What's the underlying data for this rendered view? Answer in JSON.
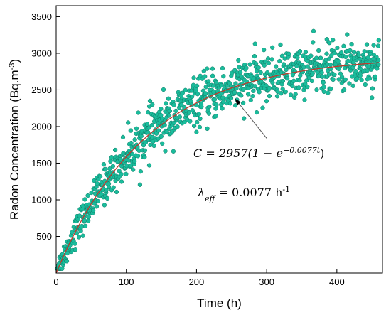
{
  "chart_data": {
    "type": "scatter",
    "title": "",
    "xlabel": "Time (h)",
    "ylabel_base": "Radon Concentration (Bq.m",
    "ylabel_sup": "-3",
    "ylabel_close": ")",
    "xlim": [
      0,
      465
    ],
    "ylim": [
      0,
      3650
    ],
    "x_ticks": [
      0,
      100,
      200,
      300,
      400
    ],
    "y_ticks": [
      500,
      1000,
      1500,
      2000,
      2500,
      3000,
      3500
    ],
    "grid": false,
    "legend": "none",
    "fit": {
      "C_inf": 2957,
      "lambda": 0.0077,
      "color": "#c0392b"
    },
    "scatter": {
      "color": "#1abc9c",
      "edge_color": "#117a65",
      "t_start": 1,
      "t_end": 460,
      "n_points": 900,
      "noise_amplitude": 220
    },
    "annotations": {
      "equation": {
        "lhs": "C = 2957(1 − e",
        "exponent": "−0.0077t",
        "rhs": ")"
      },
      "lambda": {
        "symbol": "λ",
        "subscript": "eff",
        "value": " = 0.0077 h",
        "unit_sup": "-1"
      },
      "arrow_target": {
        "t": 255,
        "c": 2380
      },
      "arrow_from": {
        "t": 300,
        "c": 1840
      }
    }
  }
}
